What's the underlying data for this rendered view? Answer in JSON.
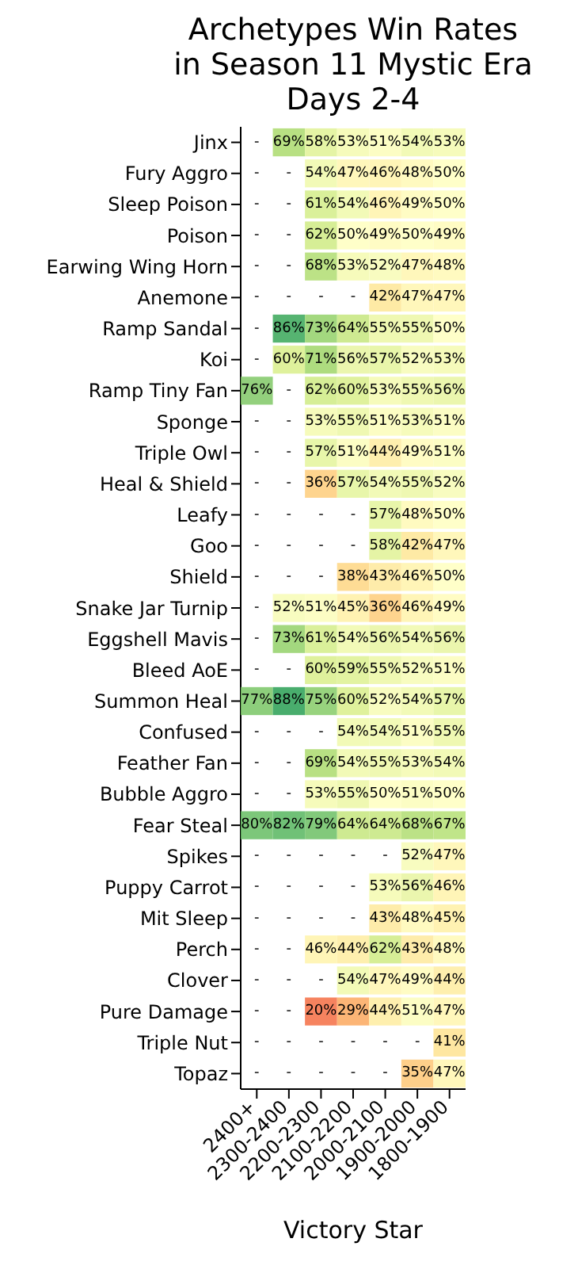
{
  "chart_data": {
    "type": "heatmap",
    "title": "Archetypes Win Rates\nin Season 11 Mystic Era\nDays 2-4",
    "xlabel": "Victory Star",
    "categories": [
      "2400+",
      "2300-2400",
      "2200-2300",
      "2100-2200",
      "2000-2100",
      "1900-2000",
      "1800-1900"
    ],
    "y_categories": [
      "Jinx",
      "Fury Aggro",
      "Sleep Poison",
      "Poison",
      "Earwing Wing Horn",
      "Anemone",
      "Ramp Sandal",
      "Koi",
      "Ramp Tiny Fan",
      "Sponge",
      "Triple Owl",
      "Heal & Shield",
      "Leafy",
      "Goo",
      "Shield",
      "Snake Jar Turnip",
      "Eggshell Mavis",
      "Bleed AoE",
      "Summon Heal",
      "Confused",
      "Feather Fan",
      "Bubble Aggro",
      "Fear Steal",
      "Spikes",
      "Puppy Carrot",
      "Mit Sleep",
      "Perch",
      "Clover",
      "Pure Damage",
      "Triple Nut",
      "Topaz"
    ],
    "cells": [
      [
        null,
        69,
        58,
        53,
        51,
        54,
        53
      ],
      [
        null,
        null,
        54,
        47,
        46,
        48,
        50
      ],
      [
        null,
        null,
        61,
        54,
        46,
        49,
        50
      ],
      [
        null,
        null,
        62,
        50,
        49,
        50,
        49
      ],
      [
        null,
        null,
        68,
        53,
        52,
        47,
        48
      ],
      [
        null,
        null,
        null,
        null,
        42,
        47,
        47
      ],
      [
        null,
        86,
        73,
        64,
        55,
        55,
        50
      ],
      [
        null,
        60,
        71,
        56,
        57,
        52,
        53
      ],
      [
        76,
        null,
        62,
        60,
        53,
        55,
        56
      ],
      [
        null,
        null,
        53,
        55,
        51,
        53,
        51
      ],
      [
        null,
        null,
        57,
        51,
        44,
        49,
        51
      ],
      [
        null,
        null,
        36,
        57,
        54,
        55,
        52
      ],
      [
        null,
        null,
        null,
        null,
        57,
        48,
        50
      ],
      [
        null,
        null,
        null,
        null,
        58,
        42,
        47
      ],
      [
        null,
        null,
        null,
        38,
        43,
        46,
        50
      ],
      [
        null,
        52,
        51,
        45,
        36,
        46,
        49
      ],
      [
        null,
        73,
        61,
        54,
        56,
        54,
        56
      ],
      [
        null,
        null,
        60,
        59,
        55,
        52,
        51
      ],
      [
        77,
        88,
        75,
        60,
        52,
        54,
        57
      ],
      [
        null,
        null,
        null,
        54,
        54,
        51,
        55
      ],
      [
        null,
        null,
        69,
        54,
        55,
        53,
        54
      ],
      [
        null,
        null,
        53,
        55,
        50,
        51,
        50
      ],
      [
        80,
        82,
        79,
        64,
        64,
        68,
        67
      ],
      [
        null,
        null,
        null,
        null,
        null,
        52,
        47
      ],
      [
        null,
        null,
        null,
        null,
        53,
        56,
        46
      ],
      [
        null,
        null,
        null,
        null,
        43,
        48,
        45
      ],
      [
        null,
        null,
        46,
        44,
        62,
        43,
        48
      ],
      [
        null,
        null,
        null,
        54,
        47,
        49,
        44
      ],
      [
        null,
        null,
        20,
        29,
        44,
        51,
        47
      ],
      [
        null,
        null,
        null,
        null,
        null,
        null,
        41
      ],
      [
        null,
        null,
        null,
        null,
        null,
        35,
        47
      ]
    ],
    "cell_labels": [
      [
        "-",
        "69%",
        "58%",
        "53%",
        "51%",
        "54%",
        "53%"
      ],
      [
        "-",
        "-",
        "54%",
        "47%",
        "46%",
        "48%",
        "50%"
      ],
      [
        "-",
        "-",
        "61%",
        "54%",
        "46%",
        "49%",
        "50%"
      ],
      [
        "-",
        "-",
        "62%",
        "50%",
        "49%",
        "50%",
        "49%"
      ],
      [
        "-",
        "-",
        "68%",
        "53%",
        "52%",
        "47%",
        "48%"
      ],
      [
        "-",
        "-",
        "-",
        "-",
        "42%",
        "47%",
        "47%"
      ],
      [
        "-",
        "86%",
        "73%",
        "64%",
        "55%",
        "55%",
        "50%"
      ],
      [
        "-",
        "60%",
        "71%",
        "56%",
        "57%",
        "52%",
        "53%"
      ],
      [
        "76%",
        "-",
        "62%",
        "60%",
        "53%",
        "55%",
        "56%"
      ],
      [
        "-",
        "-",
        "53%",
        "55%",
        "51%",
        "53%",
        "51%"
      ],
      [
        "-",
        "-",
        "57%",
        "51%",
        "44%",
        "49%",
        "51%"
      ],
      [
        "-",
        "-",
        "36%",
        "57%",
        "54%",
        "55%",
        "52%"
      ],
      [
        "-",
        "-",
        "-",
        "-",
        "57%",
        "48%",
        "50%"
      ],
      [
        "-",
        "-",
        "-",
        "-",
        "58%",
        "42%",
        "47%"
      ],
      [
        "-",
        "-",
        "-",
        "38%",
        "43%",
        "46%",
        "50%"
      ],
      [
        "-",
        "52%",
        "51%",
        "45%",
        "36%",
        "46%",
        "49%"
      ],
      [
        "-",
        "73%",
        "61%",
        "54%",
        "56%",
        "54%",
        "56%"
      ],
      [
        "-",
        "-",
        "60%",
        "59%",
        "55%",
        "52%",
        "51%"
      ],
      [
        "77%",
        "88%",
        "75%",
        "60%",
        "52%",
        "54%",
        "57%"
      ],
      [
        "-",
        "-",
        "-",
        "54%",
        "54%",
        "51%",
        "55%"
      ],
      [
        "-",
        "-",
        "69%",
        "54%",
        "55%",
        "53%",
        "54%"
      ],
      [
        "-",
        "-",
        "53%",
        "55%",
        "50%",
        "51%",
        "50%"
      ],
      [
        "80%",
        "82%",
        "79%",
        "64%",
        "64%",
        "68%",
        "67%"
      ],
      [
        "-",
        "-",
        "-",
        "-",
        "-",
        "52%",
        "47%"
      ],
      [
        "-",
        "-",
        "-",
        "-",
        "53%",
        "56%",
        "46%"
      ],
      [
        "-",
        "-",
        "-",
        "-",
        "43%",
        "48%",
        "45%"
      ],
      [
        "-",
        "-",
        "46%",
        "44%",
        "62%",
        "43%",
        "48%"
      ],
      [
        "-",
        "-",
        "-",
        "54%",
        "47%",
        "49%",
        "44%"
      ],
      [
        "-",
        "-",
        "20%",
        "29%",
        "44%",
        "51%",
        "47%"
      ],
      [
        "-",
        "-",
        "-",
        "-",
        "-",
        "-",
        "41%"
      ],
      [
        "-",
        "-",
        "-",
        "-",
        "-",
        "35%",
        "47%"
      ]
    ]
  }
}
